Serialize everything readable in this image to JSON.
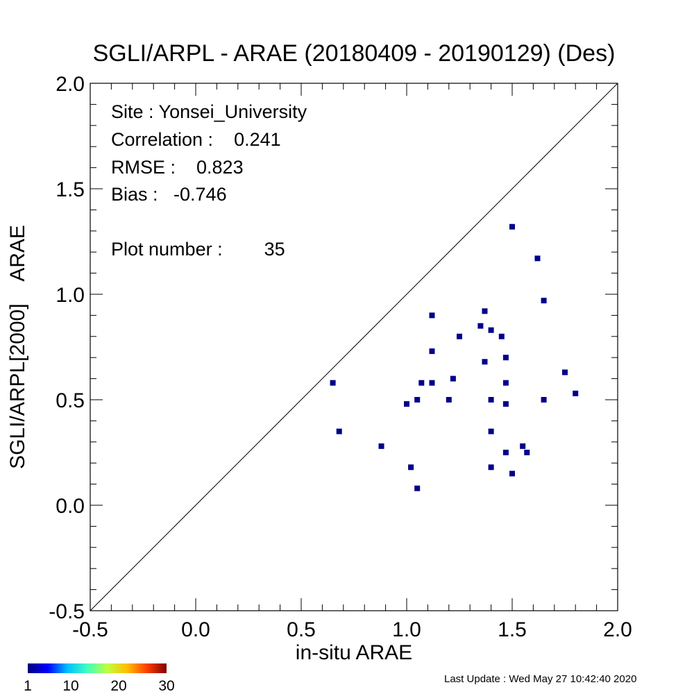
{
  "chart_data": {
    "type": "scatter",
    "title": "SGLI/ARPL - ARAE (20180409 - 20190129) (Des)",
    "xlabel": "in-situ ARAE",
    "ylabel": "SGLI/ARPL[2000]    ARAE",
    "xlim": [
      -0.5,
      2.0
    ],
    "ylim": [
      -0.5,
      2.0
    ],
    "x_ticks": [
      "-0.5",
      "0.0",
      "0.5",
      "1.0",
      "1.5",
      "2.0"
    ],
    "y_ticks": [
      "-0.5",
      "0.0",
      "0.5",
      "1.0",
      "1.5",
      "2.0"
    ],
    "reference_line": "1:1",
    "grid": false,
    "point_color": "#00008b",
    "stats": {
      "site": "Site : Yonsei_University",
      "correlation": "Correlation :    0.241",
      "rmse": "RMSE :    0.823",
      "bias": "Bias :   -0.746",
      "plot_number": "Plot number :        35"
    },
    "points": [
      {
        "x": 0.65,
        "y": 0.58
      },
      {
        "x": 0.68,
        "y": 0.35
      },
      {
        "x": 0.88,
        "y": 0.28
      },
      {
        "x": 1.0,
        "y": 0.48
      },
      {
        "x": 1.02,
        "y": 0.18
      },
      {
        "x": 1.05,
        "y": 0.5
      },
      {
        "x": 1.05,
        "y": 0.08
      },
      {
        "x": 1.07,
        "y": 0.58
      },
      {
        "x": 1.12,
        "y": 0.9
      },
      {
        "x": 1.12,
        "y": 0.73
      },
      {
        "x": 1.12,
        "y": 0.58
      },
      {
        "x": 1.2,
        "y": 0.5
      },
      {
        "x": 1.22,
        "y": 0.6
      },
      {
        "x": 1.25,
        "y": 0.8
      },
      {
        "x": 1.35,
        "y": 0.85
      },
      {
        "x": 1.37,
        "y": 0.92
      },
      {
        "x": 1.37,
        "y": 0.68
      },
      {
        "x": 1.4,
        "y": 0.83
      },
      {
        "x": 1.4,
        "y": 0.5
      },
      {
        "x": 1.4,
        "y": 0.35
      },
      {
        "x": 1.4,
        "y": 0.18
      },
      {
        "x": 1.45,
        "y": 0.8
      },
      {
        "x": 1.47,
        "y": 0.7
      },
      {
        "x": 1.47,
        "y": 0.58
      },
      {
        "x": 1.47,
        "y": 0.48
      },
      {
        "x": 1.47,
        "y": 0.25
      },
      {
        "x": 1.5,
        "y": 1.32
      },
      {
        "x": 1.5,
        "y": 0.15
      },
      {
        "x": 1.55,
        "y": 0.28
      },
      {
        "x": 1.57,
        "y": 0.25
      },
      {
        "x": 1.62,
        "y": 1.17
      },
      {
        "x": 1.65,
        "y": 0.97
      },
      {
        "x": 1.65,
        "y": 0.5
      },
      {
        "x": 1.75,
        "y": 0.63
      },
      {
        "x": 1.8,
        "y": 0.53
      }
    ],
    "colorbar": {
      "ticks": [
        "1",
        "10",
        "20",
        "30"
      ],
      "colors": [
        "#00007f",
        "#0000ff",
        "#00bfff",
        "#40ffbf",
        "#bfff40",
        "#ffbf00",
        "#ff4000",
        "#7f0000"
      ]
    }
  },
  "footer": {
    "last_update": "Last Update : Wed May 27 10:42:40 2020"
  }
}
